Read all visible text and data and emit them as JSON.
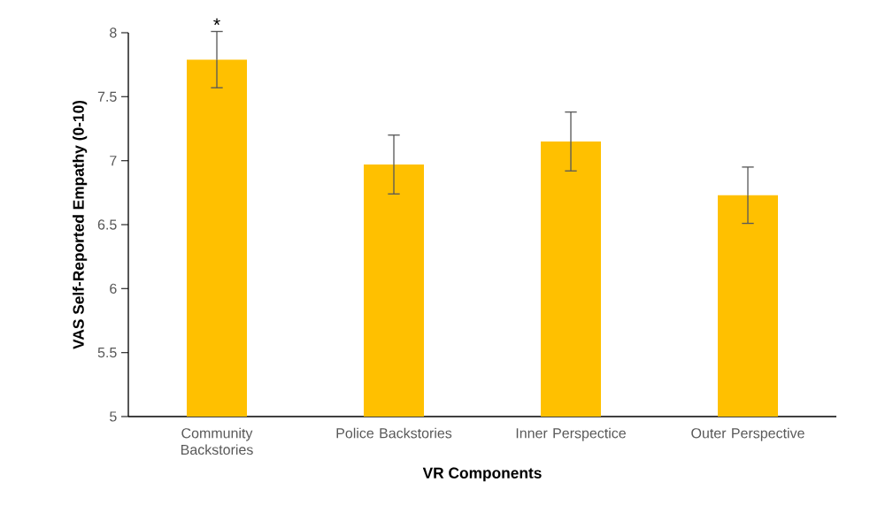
{
  "chart_data": {
    "type": "bar",
    "xlabel": "VR Components",
    "ylabel": "VAS Self-Reported Empathy (0-10)",
    "categories": [
      "Community Backstories",
      "Police Backstories",
      "Inner Perspectice",
      "Outer Perspective"
    ],
    "values": [
      7.79,
      6.97,
      7.15,
      6.73
    ],
    "errors": [
      0.22,
      0.23,
      0.23,
      0.22
    ],
    "color": "#ffc000",
    "ylim": [
      5,
      8
    ],
    "yticks": [
      5,
      5.5,
      6,
      6.5,
      7,
      7.5,
      8
    ],
    "annotations": [
      {
        "text": "*",
        "x": "Community Backstories",
        "y": 8
      }
    ]
  }
}
